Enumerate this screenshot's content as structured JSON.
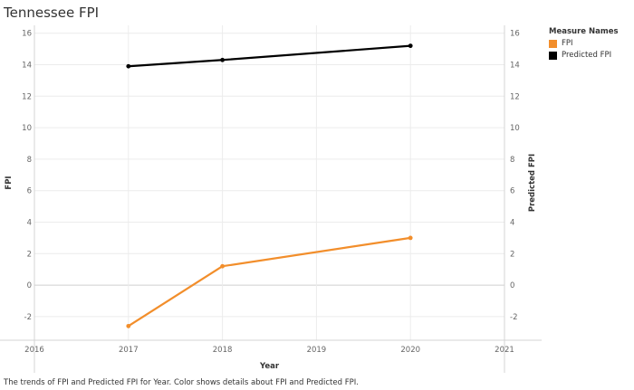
{
  "title": "Tennessee FPI",
  "legend": {
    "title": "Measure Names",
    "items": [
      {
        "label": "FPI",
        "color": "#f28e2b"
      },
      {
        "label": "Predicted FPI",
        "color": "#000000"
      }
    ]
  },
  "caption": "The trends of FPI and Predicted FPI for Year.  Color shows details about FPI and Predicted FPI.",
  "chart_data": {
    "type": "line",
    "xlabel": "Year",
    "ylabel_left": "FPI",
    "ylabel_right": "Predicted FPI",
    "x_ticks": [
      "2016",
      "2017",
      "2018",
      "2019",
      "2020",
      "2021"
    ],
    "xlim": [
      2016,
      2021
    ],
    "ylim": [
      -3.5,
      16.5
    ],
    "y_ticks": [
      "-2",
      "0",
      "2",
      "4",
      "6",
      "8",
      "10",
      "12",
      "14",
      "16"
    ],
    "grid": true,
    "legend_position": "right",
    "series": [
      {
        "name": "FPI",
        "color": "#f28e2b",
        "x": [
          2017,
          2018,
          2020
        ],
        "y": [
          -2.6,
          1.2,
          3.0
        ]
      },
      {
        "name": "Predicted FPI",
        "color": "#000000",
        "x": [
          2017,
          2018,
          2020
        ],
        "y": [
          13.9,
          14.3,
          15.2
        ]
      }
    ]
  }
}
